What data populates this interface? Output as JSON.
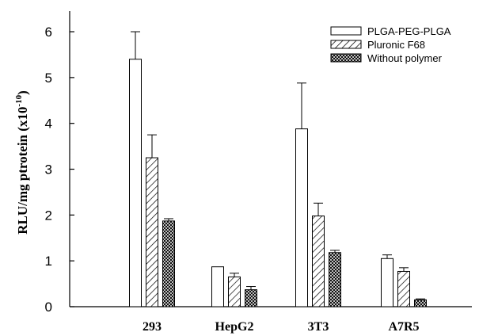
{
  "chart_data": {
    "type": "bar",
    "categories": [
      "293",
      "HepG2",
      "3T3",
      "A7R5"
    ],
    "series": [
      {
        "name": "PLGA-PEG-PLGA",
        "values": [
          5.4,
          0.87,
          3.88,
          1.05
        ],
        "errors": [
          0.6,
          0.0,
          1.0,
          0.08
        ],
        "pattern": "blank"
      },
      {
        "name": "Pluronic F68",
        "values": [
          3.25,
          0.65,
          1.98,
          0.77
        ],
        "errors": [
          0.5,
          0.08,
          0.28,
          0.08
        ],
        "pattern": "hatch"
      },
      {
        "name": "Without polymer",
        "values": [
          1.87,
          0.37,
          1.18,
          0.15
        ],
        "errors": [
          0.05,
          0.07,
          0.05,
          0.02
        ],
        "pattern": "crosshatch"
      }
    ],
    "ylim": [
      0,
      6.45
    ],
    "yticks": [
      "0",
      "1",
      "2",
      "3",
      "4",
      "5",
      "6"
    ],
    "ylabel": {
      "main": "RLU/mg ptrotein (x10",
      "exp": "-10",
      "close": ")"
    },
    "xlabel": "",
    "legend": "top-right",
    "grid": false
  }
}
